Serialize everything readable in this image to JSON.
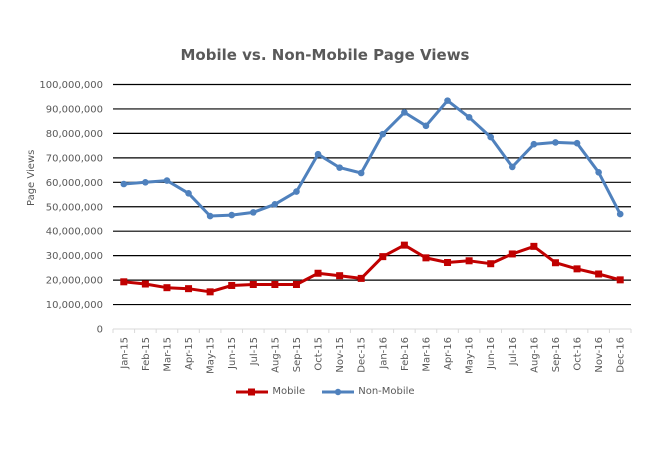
{
  "chart_data": {
    "type": "line",
    "title": "Mobile vs. Non-Mobile Page Views",
    "xlabel": "",
    "ylabel": "Page Views",
    "ylim": [
      0,
      100000000
    ],
    "yticks": [
      0,
      10000000,
      20000000,
      30000000,
      40000000,
      50000000,
      60000000,
      70000000,
      80000000,
      90000000,
      100000000
    ],
    "ytick_labels": [
      "0",
      "10,000,000",
      "20,000,000",
      "30,000,000",
      "40,000,000",
      "50,000,000",
      "60,000,000",
      "70,000,000",
      "80,000,000",
      "90,000,000",
      "100,000,000"
    ],
    "grid": true,
    "legend_position": "bottom",
    "categories": [
      "Jan-15",
      "Feb-15",
      "Mar-15",
      "Apr-15",
      "May-15",
      "Jun-15",
      "Jul-15",
      "Aug-15",
      "Sep-15",
      "Oct-15",
      "Nov-15",
      "Dec-15",
      "Jan-16",
      "Feb-16",
      "Mar-16",
      "Apr-16",
      "May-16",
      "Jun-16",
      "Jul-16",
      "Aug-16",
      "Sep-16",
      "Oct-16",
      "Nov-16",
      "Dec-16"
    ],
    "series": [
      {
        "name": "Mobile",
        "color": "#C00000",
        "marker": "square",
        "values": [
          19300000,
          18400000,
          16900000,
          16500000,
          15200000,
          17800000,
          18200000,
          18200000,
          18200000,
          22800000,
          21800000,
          20700000,
          29600000,
          34300000,
          29100000,
          27200000,
          27900000,
          26700000,
          30700000,
          33800000,
          27100000,
          24600000,
          22500000,
          20100000
        ]
      },
      {
        "name": "Non-Mobile",
        "color": "#4F81BD",
        "marker": "circle",
        "values": [
          59300000,
          60000000,
          60700000,
          55500000,
          46200000,
          46600000,
          47700000,
          51000000,
          56200000,
          71500000,
          66000000,
          63800000,
          79700000,
          88600000,
          83100000,
          93400000,
          86600000,
          78500000,
          66300000,
          75600000,
          76300000,
          76000000,
          64100000,
          47000000
        ]
      }
    ]
  }
}
